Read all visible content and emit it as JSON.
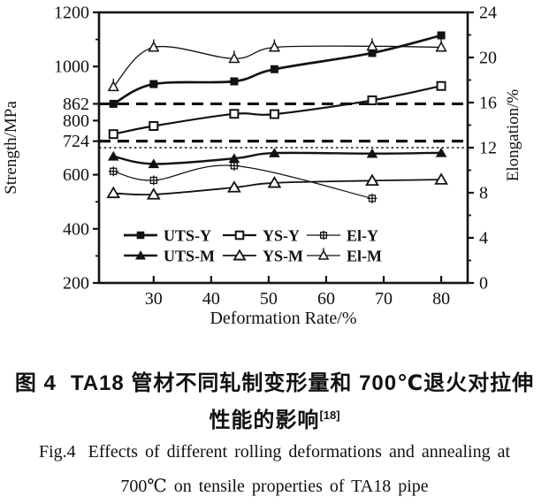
{
  "caption": {
    "zh_fig_label": "图 4",
    "zh_line1": "TA18 管材不同轧制变形量和 700℃退火对拉伸",
    "zh_line2": "性能的影响",
    "zh_reference": "[18]",
    "en_fig_label": "Fig.4",
    "en_line1": "Effects of different rolling deformations and annealing at",
    "en_line2": "700℃ on tensile properties of TA18 pipe"
  },
  "chart_data": {
    "type": "line",
    "title": "",
    "xlabel": "Deformation Rate/%",
    "ylabel_left": "Strength/MPa",
    "ylabel_right": "Elongation/%",
    "xlim": [
      20.5,
      84.6
    ],
    "x_ticks": [
      30,
      40,
      50,
      60,
      70,
      80
    ],
    "ylim_left": [
      200,
      1200
    ],
    "left_tick_labels": [
      200,
      400,
      600,
      724,
      800,
      862,
      1000,
      1200
    ],
    "left_minor_ticks": [
      300,
      500,
      1100
    ],
    "ylim_right": [
      0,
      24
    ],
    "right_tick_labels": [
      0,
      4,
      8,
      12,
      16,
      20,
      24
    ],
    "right_minor_ticks": [
      2,
      6,
      10,
      14,
      18,
      22
    ],
    "grid": false,
    "reference_lines": [
      {
        "name": "spec-uts-862",
        "axis": "left",
        "value": 862,
        "style": "dashed-heavy"
      },
      {
        "name": "spec-ys-724",
        "axis": "left",
        "value": 724,
        "style": "dashed-heavy"
      },
      {
        "name": "spec-el-12",
        "axis": "right",
        "value": 12,
        "style": "dotted-fine"
      }
    ],
    "series": [
      {
        "name": "UTS-Y",
        "axis": "left",
        "marker": "filled-square",
        "line_width": 2.7,
        "x": [
          23,
          30,
          44,
          51,
          68,
          80
        ],
        "values": [
          862,
          935,
          945,
          990,
          1050,
          1115
        ]
      },
      {
        "name": "YS-Y",
        "axis": "left",
        "marker": "open-square",
        "line_width": 2.2,
        "x": [
          23,
          30,
          44,
          51,
          68,
          80
        ],
        "values": [
          750,
          780,
          825,
          824,
          875,
          928
        ]
      },
      {
        "name": "El-Y",
        "axis": "right",
        "marker": "crossed-square",
        "line_width": 1.2,
        "x": [
          23,
          30,
          44,
          68
        ],
        "values": [
          9.9,
          9.1,
          10.4,
          7.5
        ]
      },
      {
        "name": "UTS-M",
        "axis": "left",
        "marker": "filled-triangle",
        "line_width": 2.4,
        "x": [
          23,
          30,
          44,
          51,
          68,
          80
        ],
        "values": [
          668,
          640,
          660,
          680,
          678,
          681
        ]
      },
      {
        "name": "YS-M",
        "axis": "left",
        "marker": "open-triangle",
        "line_width": 1.8,
        "x": [
          23,
          30,
          44,
          51,
          68,
          80
        ],
        "values": [
          532,
          527,
          553,
          570,
          578,
          582
        ]
      },
      {
        "name": "El-M",
        "axis": "right",
        "marker": "cross-triangle",
        "line_width": 1.3,
        "x": [
          23,
          30,
          44,
          51,
          68,
          80
        ],
        "values": [
          17.4,
          20.9,
          19.9,
          20.9,
          21.0,
          20.9
        ]
      }
    ],
    "legend": {
      "position": "inside-bottom",
      "rows": [
        [
          {
            "marker": "filled-square",
            "label": "UTS-Y"
          },
          {
            "marker": "open-square",
            "label": "YS-Y"
          },
          {
            "marker": "crossed-square",
            "label": "El-Y"
          }
        ],
        [
          {
            "marker": "filled-triangle",
            "label": "UTS-M"
          },
          {
            "marker": "open-triangle",
            "label": "YS-M"
          },
          {
            "marker": "cross-triangle",
            "label": "El-M"
          }
        ]
      ]
    },
    "colors": {
      "ink": "#121212",
      "background": "#ffffff"
    }
  }
}
